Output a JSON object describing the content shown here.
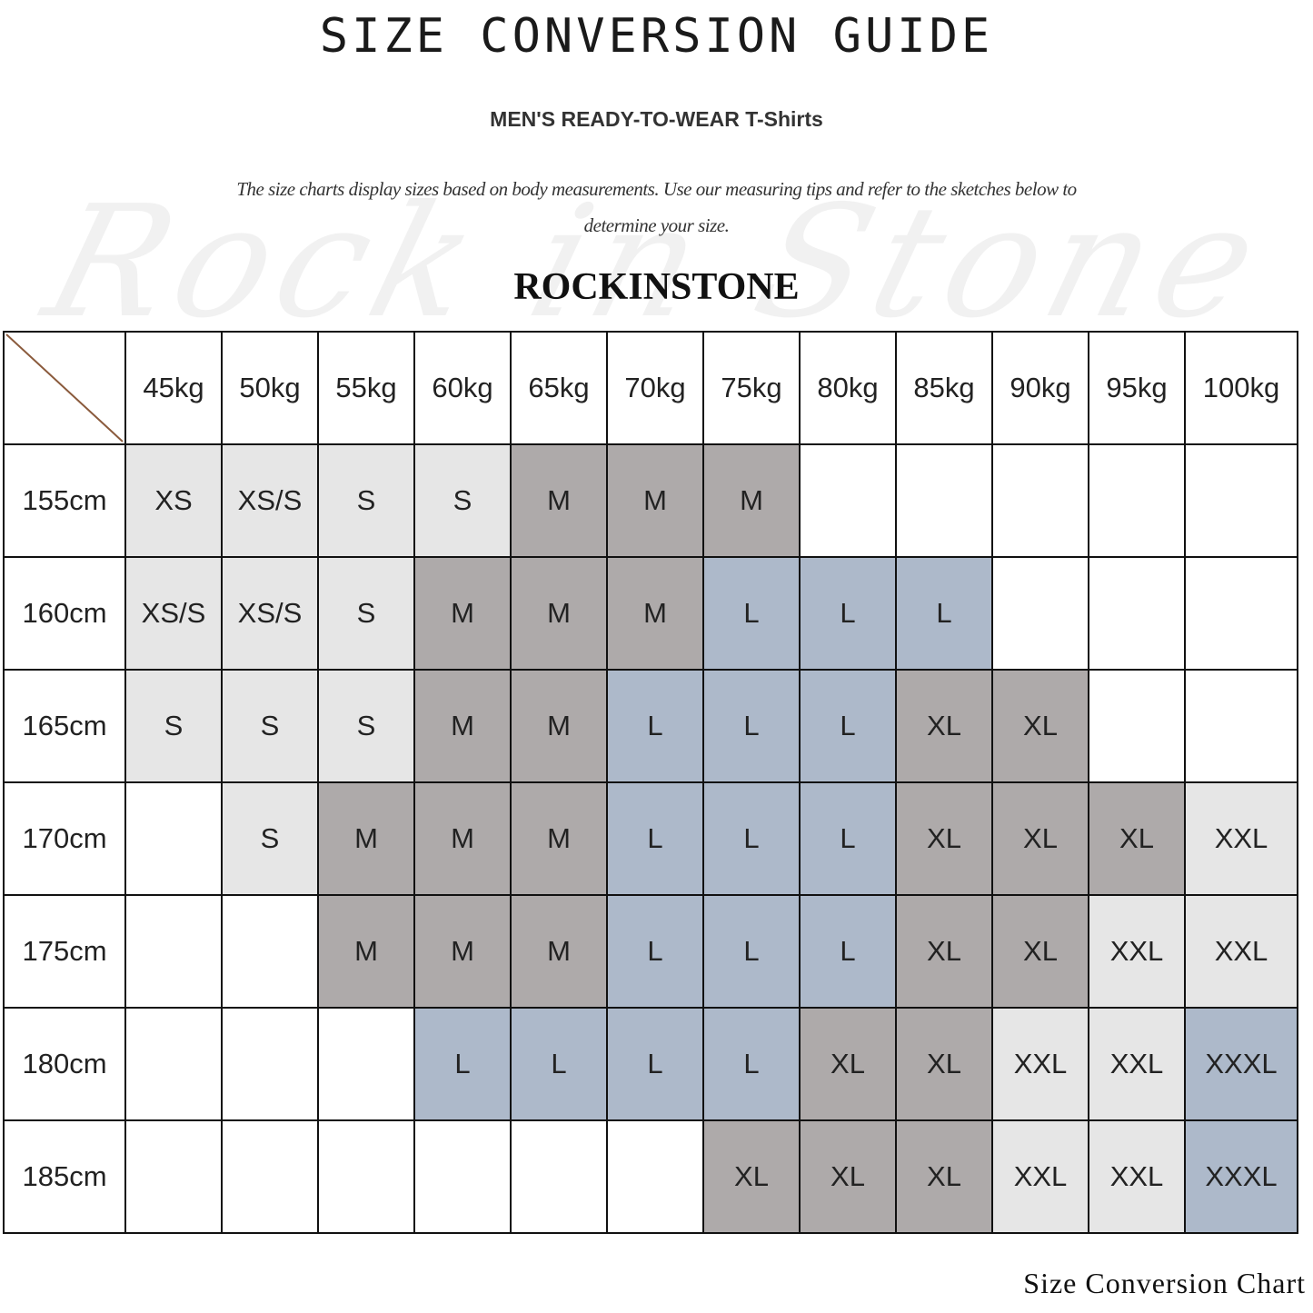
{
  "title": "SIZE CONVERSION GUIDE",
  "subtitle": "MEN'S READY-TO-WEAR T-Shirts",
  "description": "The size charts display sizes based on body measurements. Use our measuring tips and refer to the sketches below to determine your size.",
  "watermark": "Rock in Stone",
  "brand": "ROCKINSTONE",
  "caption": "Size Conversion Chart",
  "colors": {
    "XS": "#e6e6e6",
    "S": "#e6e6e6",
    "XS/S": "#e6e6e6",
    "M": "#aeaaaa",
    "L": "#adb9ca",
    "XL": "#aeaaaa",
    "XXL": "#e6e6e6",
    "XXXL": "#adb9ca"
  },
  "table": {
    "columns": [
      "45kg",
      "50kg",
      "55kg",
      "60kg",
      "65kg",
      "70kg",
      "75kg",
      "80kg",
      "85kg",
      "90kg",
      "95kg",
      "100kg"
    ],
    "rows": [
      {
        "height": "155cm",
        "sizes": [
          "XS",
          "XS/S",
          "S",
          "S",
          "M",
          "M",
          "M",
          "",
          "",
          "",
          "",
          ""
        ]
      },
      {
        "height": "160cm",
        "sizes": [
          "XS/S",
          "XS/S",
          "S",
          "M",
          "M",
          "M",
          "L",
          "L",
          "L",
          "",
          "",
          ""
        ]
      },
      {
        "height": "165cm",
        "sizes": [
          "S",
          "S",
          "S",
          "M",
          "M",
          "L",
          "L",
          "L",
          "XL",
          "XL",
          "",
          ""
        ]
      },
      {
        "height": "170cm",
        "sizes": [
          "",
          "S",
          "M",
          "M",
          "M",
          "L",
          "L",
          "L",
          "XL",
          "XL",
          "XL",
          "XXL"
        ]
      },
      {
        "height": "175cm",
        "sizes": [
          "",
          "",
          "M",
          "M",
          "M",
          "L",
          "L",
          "L",
          "XL",
          "XL",
          "XXL",
          "XXL"
        ]
      },
      {
        "height": "180cm",
        "sizes": [
          "",
          "",
          "",
          "L",
          "L",
          "L",
          "L",
          "XL",
          "XL",
          "XXL",
          "XXL",
          "XXXL"
        ]
      },
      {
        "height": "185cm",
        "sizes": [
          "",
          "",
          "",
          "",
          "",
          "",
          "XL",
          "XL",
          "XL",
          "XXL",
          "XXL",
          "XXXL"
        ]
      }
    ]
  }
}
